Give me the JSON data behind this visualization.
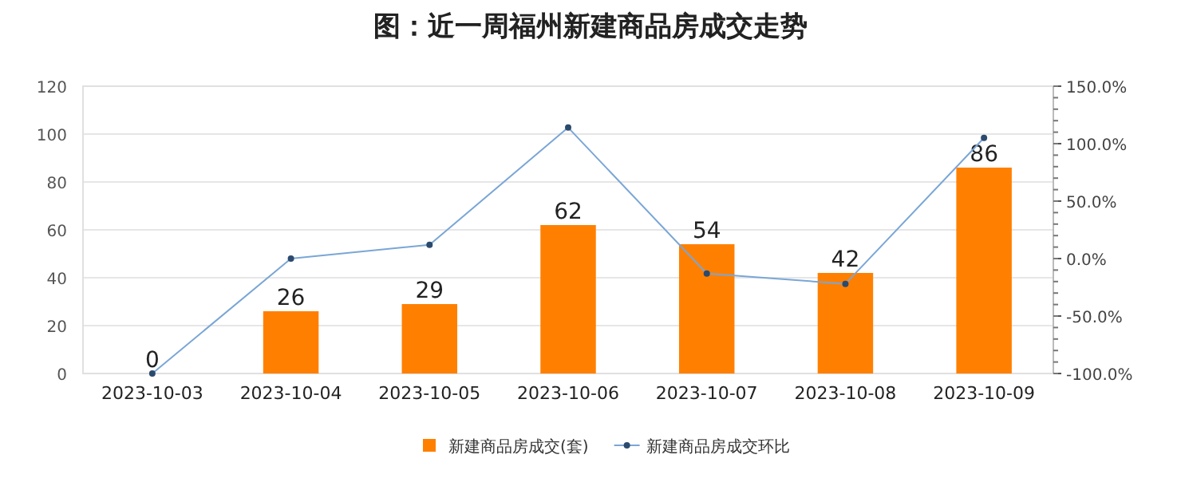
{
  "chart_data": {
    "type": "bar",
    "title": "图：近一周福州新建商品房成交走势",
    "categories": [
      "2023-10-03",
      "2023-10-04",
      "2023-10-05",
      "2023-10-06",
      "2023-10-07",
      "2023-10-08",
      "2023-10-09"
    ],
    "series": [
      {
        "name": "新建商品房成交(套)",
        "color": "#ff8000",
        "values": [
          0,
          26,
          29,
          62,
          54,
          42,
          86
        ],
        "data_labels": true
      },
      {
        "name": "新建商品房成交环比",
        "type": "line",
        "axis": "y2",
        "color": "#7aa6d6",
        "marker": "circle",
        "values": [
          -100,
          0,
          12,
          114,
          -13,
          -22,
          105
        ]
      }
    ],
    "ylim": [
      0,
      120
    ],
    "yticks": [
      0,
      20,
      40,
      60,
      80,
      100,
      120
    ],
    "y2lim": [
      -100,
      150
    ],
    "y2ticks": [
      {
        "value": -100,
        "label": "-100.0%"
      },
      {
        "value": -50,
        "label": "-50.0%"
      },
      {
        "value": 0,
        "label": "0.0%"
      },
      {
        "value": 50,
        "label": "50.0%"
      },
      {
        "value": 100,
        "label": "100.0%"
      },
      {
        "value": 150,
        "label": "150.0%"
      }
    ],
    "grid": "y",
    "legend": "bottom"
  }
}
